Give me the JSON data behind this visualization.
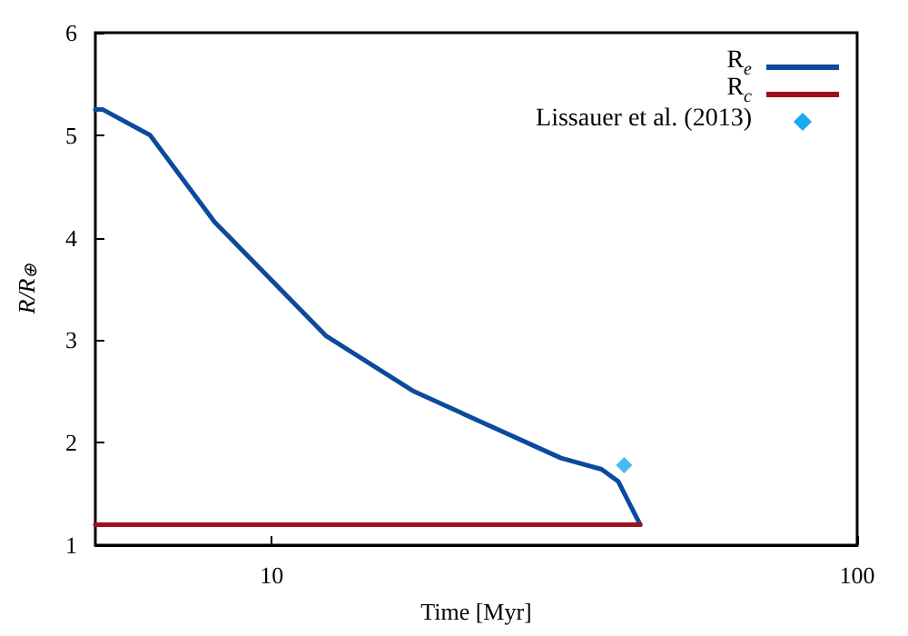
{
  "chart_data": {
    "type": "line",
    "xlabel": "Time [Myr]",
    "ylabel": "R/R$_{⊕}$",
    "log": "x",
    "xlim": [
      5,
      100
    ],
    "xticks": [
      10,
      100
    ],
    "ylim": [
      1,
      6
    ],
    "yticks": [
      1,
      2,
      3,
      4,
      5,
      6
    ],
    "grid": false,
    "legend": "top right",
    "line_style": "solid",
    "series": [
      {
        "name": "R$_{e}$",
        "color": "#0b4a9c",
        "x": [
          5,
          5.15,
          6.2,
          8.0,
          12.4,
          17.5,
          31.2,
          36.6,
          39.1,
          42.6
        ],
        "values": [
          5.25,
          5.25,
          5.0,
          4.15,
          3.04,
          2.5,
          1.85,
          1.74,
          1.62,
          1.2
        ]
      },
      {
        "name": "R$_{c}$",
        "color": "#a0101a",
        "x": [
          5,
          42.6
        ],
        "values": [
          1.2,
          1.2
        ]
      },
      {
        "name": "Lissauer et al. (2013)",
        "type": "scatter",
        "marker": "diamond",
        "color": "#1aa8f0",
        "x": [
          40
        ],
        "values": [
          1.78
        ]
      }
    ]
  }
}
